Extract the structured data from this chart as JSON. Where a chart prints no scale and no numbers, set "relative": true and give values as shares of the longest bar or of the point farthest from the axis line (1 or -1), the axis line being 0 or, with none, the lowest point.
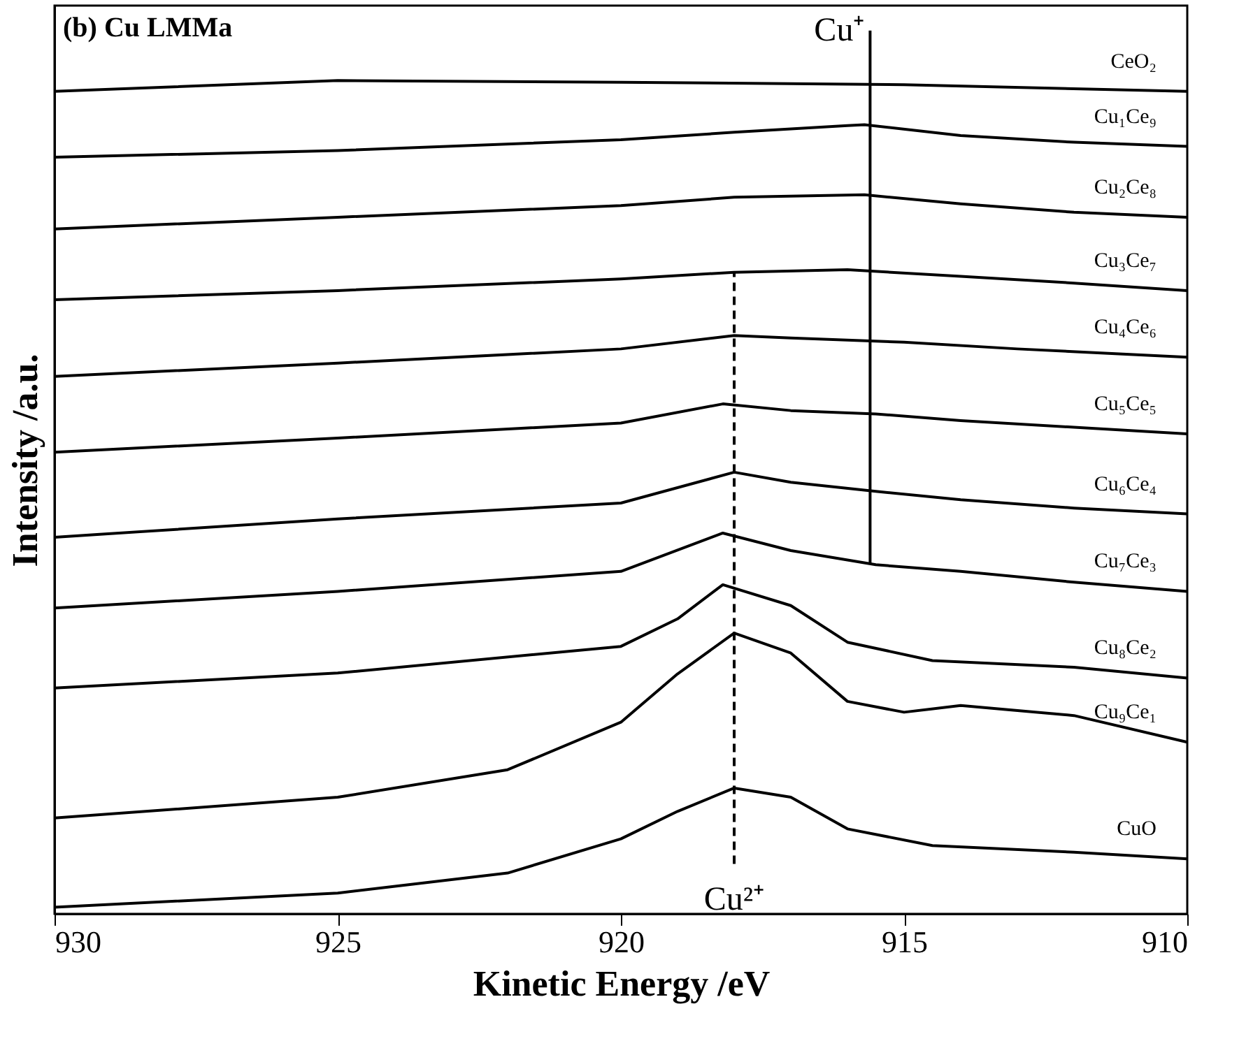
{
  "chart_data": {
    "type": "line",
    "relative": true,
    "xlabel": "Kinetic Energy /eV",
    "ylabel": "Intensity /a.u.",
    "annotations": [
      "(b) Cu LMMa"
    ],
    "xlim": [
      930,
      910
    ],
    "xticks": [
      930,
      925,
      920,
      915,
      910
    ],
    "line_style": "solid",
    "marker": "none",
    "grid": false,
    "legend": false,
    "ref_lines": [
      {
        "axis": "x",
        "value": 918,
        "label": "Cu²⁺",
        "line_style": "dashed",
        "color": "#000000"
      },
      {
        "axis": "x",
        "value": 915.6,
        "label": "Cu⁺",
        "line_style": "solid",
        "color": "#000000"
      }
    ],
    "series": [
      {
        "name": "CeO₂",
        "color": "#000000",
        "x": [
          930,
          925,
          920,
          915,
          910
        ],
        "values": [
          0.987,
          1.0,
          0.998,
          0.995,
          0.987
        ]
      },
      {
        "name": "Cu₁Ce₉",
        "color": "#000000",
        "x": [
          930,
          925,
          920,
          918,
          916,
          915.7,
          914,
          912,
          910
        ],
        "values": [
          0.908,
          0.916,
          0.929,
          0.938,
          0.946,
          0.947,
          0.934,
          0.926,
          0.921
        ]
      },
      {
        "name": "Cu₂Ce₈",
        "color": "#000000",
        "x": [
          930,
          925,
          920,
          918,
          915.7,
          914,
          912,
          910
        ],
        "values": [
          0.822,
          0.836,
          0.85,
          0.86,
          0.863,
          0.852,
          0.842,
          0.836
        ]
      },
      {
        "name": "Cu₃Ce₇",
        "color": "#000000",
        "x": [
          930,
          925,
          920,
          918,
          916,
          914,
          912,
          910
        ],
        "values": [
          0.737,
          0.748,
          0.762,
          0.77,
          0.773,
          0.765,
          0.757,
          0.748
        ]
      },
      {
        "name": "Cu₄Ce₆",
        "color": "#000000",
        "x": [
          930,
          925,
          920,
          918,
          917,
          915,
          913,
          910
        ],
        "values": [
          0.645,
          0.661,
          0.678,
          0.694,
          0.691,
          0.686,
          0.678,
          0.668
        ]
      },
      {
        "name": "Cu₅Ce₅",
        "color": "#000000",
        "x": [
          930,
          925,
          920,
          918.2,
          917,
          915.5,
          914,
          912,
          910
        ],
        "values": [
          0.554,
          0.571,
          0.589,
          0.612,
          0.604,
          0.6,
          0.592,
          0.584,
          0.576
        ]
      },
      {
        "name": "Cu₆Ce₄",
        "color": "#000000",
        "x": [
          930,
          925,
          920,
          918,
          917,
          915.5,
          914,
          912,
          910
        ],
        "values": [
          0.452,
          0.474,
          0.493,
          0.53,
          0.518,
          0.507,
          0.497,
          0.487,
          0.48
        ]
      },
      {
        "name": "Cu₇Ce₃",
        "color": "#000000",
        "x": [
          930,
          925,
          920,
          918.2,
          917,
          915.5,
          914,
          912,
          910
        ],
        "values": [
          0.367,
          0.387,
          0.411,
          0.457,
          0.436,
          0.419,
          0.411,
          0.398,
          0.387
        ]
      },
      {
        "name": "Cu₈Ce₂",
        "color": "#000000",
        "x": [
          930,
          925,
          920,
          919,
          918.2,
          917,
          916,
          914.5,
          912,
          910
        ],
        "values": [
          0.271,
          0.289,
          0.321,
          0.354,
          0.395,
          0.37,
          0.326,
          0.304,
          0.296,
          0.283
        ]
      },
      {
        "name": "Cu₉Ce₁",
        "color": "#000000",
        "x": [
          930,
          925,
          922,
          920,
          919,
          918,
          917,
          916,
          915,
          914,
          912,
          910
        ],
        "values": [
          0.115,
          0.14,
          0.173,
          0.23,
          0.288,
          0.337,
          0.313,
          0.255,
          0.242,
          0.25,
          0.238,
          0.206
        ]
      },
      {
        "name": "CuO",
        "color": "#000000",
        "x": [
          930,
          925,
          922,
          920,
          919,
          918,
          917,
          916,
          914.5,
          912,
          910
        ],
        "values": [
          0.008,
          0.025,
          0.049,
          0.09,
          0.123,
          0.151,
          0.14,
          0.102,
          0.082,
          0.074,
          0.066
        ]
      }
    ]
  }
}
